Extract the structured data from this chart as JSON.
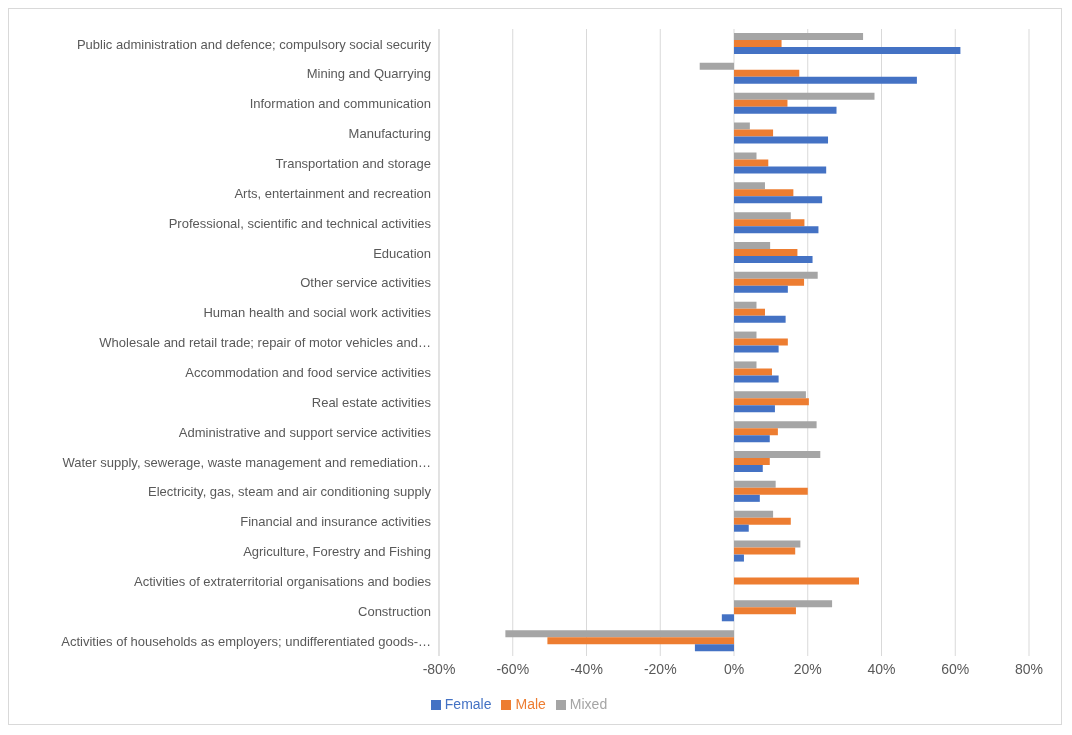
{
  "chart_data": {
    "type": "bar",
    "orientation": "horizontal",
    "categories": [
      "Public administration and defence; compulsory social security",
      "Mining and Quarrying",
      "Information and communication",
      "Manufacturing",
      "Transportation and storage",
      "Arts, entertainment and recreation",
      "Professional, scientific and technical activities",
      "Education",
      "Other service activities",
      "Human health and social work activities",
      "Wholesale and retail trade; repair of motor vehicles and…",
      "Accommodation and food service activities",
      "Real estate activities",
      "Administrative and support service activities",
      "Water supply, sewerage, waste management and remediation…",
      "Electricity, gas, steam and air conditioning supply",
      "Financial and insurance activities",
      "Agriculture, Forestry and Fishing",
      "Activities of extraterritorial organisations and bodies",
      "Construction",
      "Activities of households as employers; undifferentiated goods-…"
    ],
    "series": [
      {
        "name": "Mixed",
        "color": "#a5a5a5",
        "values": [
          35.0,
          -9.3,
          38.1,
          4.3,
          6.1,
          8.4,
          15.4,
          9.8,
          22.7,
          6.1,
          6.1,
          6.1,
          19.5,
          22.4,
          23.4,
          11.3,
          10.6,
          18.0,
          null,
          26.6,
          -62.0
        ]
      },
      {
        "name": "Male",
        "color": "#ed7d31",
        "values": [
          12.9,
          17.7,
          14.5,
          10.6,
          9.3,
          16.1,
          19.1,
          17.2,
          19.0,
          8.4,
          14.6,
          10.3,
          20.3,
          11.9,
          9.7,
          20.0,
          15.4,
          16.6,
          33.9,
          16.8,
          -50.6
        ]
      },
      {
        "name": "Female",
        "color": "#4472c4",
        "values": [
          61.4,
          49.6,
          27.8,
          25.5,
          25.0,
          23.9,
          22.9,
          21.3,
          14.6,
          14.0,
          12.1,
          12.1,
          11.1,
          9.7,
          7.8,
          7.0,
          4.0,
          2.7,
          null,
          -3.3,
          -10.6
        ]
      }
    ],
    "xlim": [
      -80,
      80
    ],
    "xticks": [
      {
        "value": -80,
        "label": "-80%"
      },
      {
        "value": -60,
        "label": "-60%"
      },
      {
        "value": -40,
        "label": "-40%"
      },
      {
        "value": -20,
        "label": "-20%"
      },
      {
        "value": 0,
        "label": "0%"
      },
      {
        "value": 20,
        "label": "20%"
      },
      {
        "value": 40,
        "label": "40%"
      },
      {
        "value": 60,
        "label": "60%"
      },
      {
        "value": 80,
        "label": "80%"
      }
    ],
    "grid": "x",
    "legend": "bottom"
  }
}
